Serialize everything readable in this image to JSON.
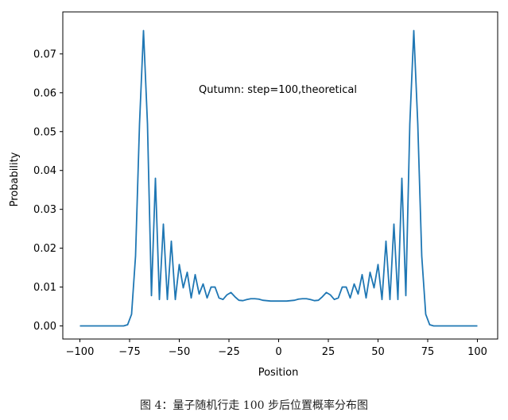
{
  "caption": "图 4：量子随机行走 100 步后位置概率分布图",
  "chart_data": {
    "type": "line",
    "annotation": "Qutumn: step=100,theoretical",
    "xlabel": "Position",
    "ylabel": "Probability",
    "xlim": [
      -100,
      100
    ],
    "ylim": [
      0,
      0.076
    ],
    "xticks": [
      -100,
      -75,
      -50,
      -25,
      0,
      25,
      50,
      75,
      100
    ],
    "xtick_labels": [
      "−100",
      "−75",
      "−50",
      "−25",
      "0",
      "25",
      "50",
      "75",
      "100"
    ],
    "yticks": [
      0.0,
      0.01,
      0.02,
      0.03,
      0.04,
      0.05,
      0.06,
      0.07
    ],
    "ytick_labels": [
      "0.00",
      "0.01",
      "0.02",
      "0.03",
      "0.04",
      "0.05",
      "0.06",
      "0.07"
    ],
    "grid": false,
    "line_color": "#1f77b4",
    "series": [
      {
        "x": [
          -100,
          -98,
          -96,
          -94,
          -92,
          -90,
          -88,
          -86,
          -84,
          -82,
          -80,
          -78,
          -76,
          -74,
          -72,
          -70,
          -68,
          -66,
          -64,
          -62,
          -60,
          -58,
          -56,
          -54,
          -52,
          -50,
          -48,
          -46,
          -44,
          -42,
          -40,
          -38,
          -36,
          -34,
          -32,
          -30,
          -28,
          -26,
          -24,
          -22,
          -20,
          -18,
          -16,
          -14,
          -12,
          -10,
          -8,
          -6,
          -4,
          -2,
          0,
          2,
          4,
          6,
          8,
          10,
          12,
          14,
          16,
          18,
          20,
          22,
          24,
          26,
          28,
          30,
          32,
          34,
          36,
          38,
          40,
          42,
          44,
          46,
          48,
          50,
          52,
          54,
          56,
          58,
          60,
          62,
          64,
          66,
          68,
          70,
          72,
          74,
          76,
          78,
          80,
          82,
          84,
          86,
          88,
          90,
          92,
          94,
          96,
          98,
          100
        ],
        "y": [
          0,
          0,
          0,
          0,
          0,
          0,
          0,
          0,
          0,
          0,
          0,
          0,
          0.0003,
          0.003,
          0.018,
          0.052,
          0.076,
          0.052,
          0.0078,
          0.038,
          0.0068,
          0.0262,
          0.0068,
          0.0218,
          0.0068,
          0.0158,
          0.0098,
          0.0138,
          0.0072,
          0.0132,
          0.0082,
          0.0108,
          0.0072,
          0.01,
          0.01,
          0.0072,
          0.0068,
          0.008,
          0.0086,
          0.0075,
          0.0066,
          0.0065,
          0.0068,
          0.007,
          0.007,
          0.0069,
          0.0066,
          0.0065,
          0.0064,
          0.0064,
          0.0064,
          0.0064,
          0.0064,
          0.0065,
          0.0066,
          0.0069,
          0.007,
          0.007,
          0.0068,
          0.0065,
          0.0066,
          0.0075,
          0.0086,
          0.008,
          0.0068,
          0.0072,
          0.01,
          0.01,
          0.0072,
          0.0108,
          0.0082,
          0.0132,
          0.0072,
          0.0138,
          0.0098,
          0.0158,
          0.0068,
          0.0218,
          0.0068,
          0.0262,
          0.0068,
          0.038,
          0.0078,
          0.052,
          0.076,
          0.052,
          0.018,
          0.003,
          0.0003,
          0,
          0,
          0,
          0,
          0,
          0,
          0,
          0,
          0,
          0,
          0,
          0
        ]
      }
    ]
  }
}
